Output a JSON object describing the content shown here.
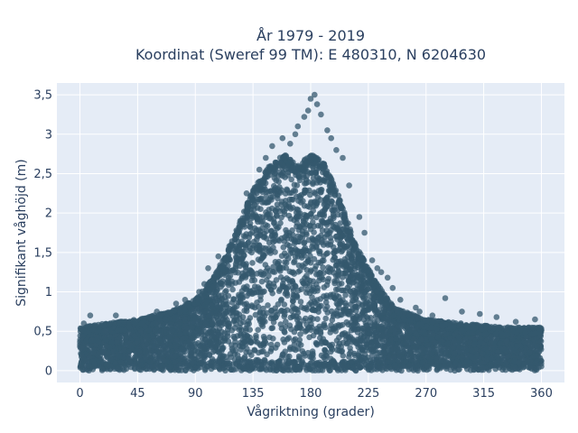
{
  "chart_data": {
    "type": "scatter",
    "title_line1": "År 1979 - 2019",
    "title_line2": "Koordinat (Sweref 99 TM): E 480310, N 6204630",
    "xlabel": "Vågriktning (grader)",
    "ylabel": "Signifikant våghöjd (m)",
    "xlim": [
      -18,
      378
    ],
    "ylim": [
      -0.15,
      3.65
    ],
    "x_ticks": [
      0,
      45,
      90,
      135,
      180,
      225,
      270,
      315,
      360
    ],
    "x_tick_labels": [
      "0",
      "45",
      "90",
      "135",
      "180",
      "225",
      "270",
      "315",
      "360"
    ],
    "y_ticks": [
      0,
      0.5,
      1,
      1.5,
      2,
      2.5,
      3,
      3.5
    ],
    "y_tick_labels": [
      "0",
      "0,5",
      "1",
      "1,5",
      "2",
      "2,5",
      "3",
      "3,5"
    ],
    "grid": true,
    "colors": {
      "marker": "#34586e",
      "plot_bg": "#e5ecf6",
      "grid": "#ffffff",
      "text": "#2a3f5f"
    },
    "envelope": {
      "x": [
        0,
        20,
        45,
        70,
        90,
        105,
        120,
        135,
        150,
        160,
        170,
        180,
        190,
        200,
        215,
        230,
        245,
        270,
        300,
        330,
        360
      ],
      "y_max": [
        0.55,
        0.6,
        0.65,
        0.75,
        0.9,
        1.2,
        1.7,
        2.3,
        2.65,
        2.75,
        2.6,
        2.75,
        2.65,
        2.3,
        1.6,
        1.15,
        0.8,
        0.65,
        0.6,
        0.55,
        0.55
      ],
      "y_min": [
        0.05,
        0.05,
        0.05,
        0.05,
        0.05,
        0.05,
        0.05,
        0.05,
        0.05,
        0.05,
        0.05,
        0.05,
        0.05,
        0.05,
        0.05,
        0.05,
        0.05,
        0.05,
        0.05,
        0.05,
        0.05
      ]
    },
    "outliers": [
      {
        "x": 180,
        "y": 3.45
      },
      {
        "x": 183,
        "y": 3.5
      },
      {
        "x": 178,
        "y": 3.3
      },
      {
        "x": 185,
        "y": 3.38
      },
      {
        "x": 175,
        "y": 3.22
      },
      {
        "x": 188,
        "y": 3.25
      },
      {
        "x": 170,
        "y": 3.1
      },
      {
        "x": 193,
        "y": 3.05
      },
      {
        "x": 168,
        "y": 3.0
      },
      {
        "x": 196,
        "y": 2.95
      },
      {
        "x": 158,
        "y": 2.95
      },
      {
        "x": 164,
        "y": 2.88
      },
      {
        "x": 200,
        "y": 2.8
      },
      {
        "x": 205,
        "y": 2.7
      },
      {
        "x": 150,
        "y": 2.85
      },
      {
        "x": 145,
        "y": 2.7
      },
      {
        "x": 140,
        "y": 2.55
      },
      {
        "x": 130,
        "y": 2.25
      },
      {
        "x": 210,
        "y": 2.35
      },
      {
        "x": 218,
        "y": 1.95
      },
      {
        "x": 222,
        "y": 1.75
      },
      {
        "x": 228,
        "y": 1.4
      },
      {
        "x": 232,
        "y": 1.3
      },
      {
        "x": 235,
        "y": 1.25
      },
      {
        "x": 240,
        "y": 1.18
      },
      {
        "x": 244,
        "y": 1.05
      },
      {
        "x": 250,
        "y": 0.9
      },
      {
        "x": 262,
        "y": 0.8
      },
      {
        "x": 285,
        "y": 0.92
      },
      {
        "x": 298,
        "y": 0.75
      },
      {
        "x": 312,
        "y": 0.72
      },
      {
        "x": 125,
        "y": 1.9
      },
      {
        "x": 118,
        "y": 1.6
      },
      {
        "x": 108,
        "y": 1.45
      },
      {
        "x": 100,
        "y": 1.3
      },
      {
        "x": 97,
        "y": 1.1
      },
      {
        "x": 93,
        "y": 1.0
      },
      {
        "x": 82,
        "y": 0.9
      },
      {
        "x": 75,
        "y": 0.85
      },
      {
        "x": 60,
        "y": 0.75
      },
      {
        "x": 8,
        "y": 0.7
      },
      {
        "x": 28,
        "y": 0.7
      },
      {
        "x": 355,
        "y": 0.65
      },
      {
        "x": 340,
        "y": 0.62
      },
      {
        "x": 265,
        "y": 0.75
      },
      {
        "x": 275,
        "y": 0.7
      },
      {
        "x": 325,
        "y": 0.68
      },
      {
        "x": 3,
        "y": 0.6
      }
    ]
  }
}
